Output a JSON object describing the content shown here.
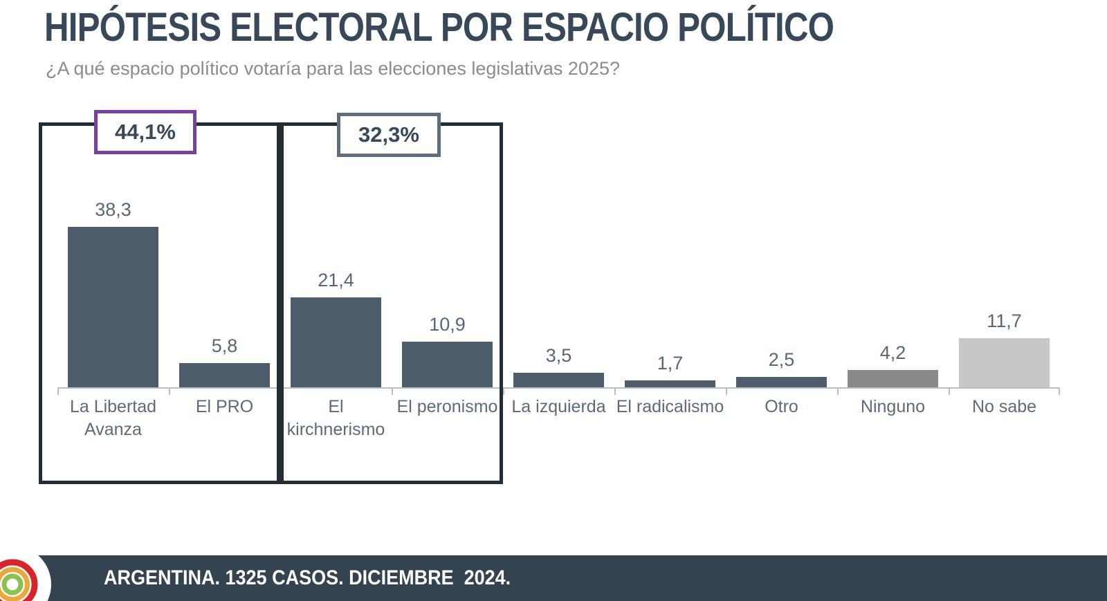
{
  "title": "HIPÓTESIS ELECTORAL POR ESPACIO POLÍTICO",
  "subtitle": "¿A qué espacio político votaría para las elecciones legislativas 2025?",
  "footer": {
    "text": "ARGENTINA. 1325 CASOS. DICIEMBRE  2024.",
    "background": "#334450",
    "logo": "rainbow-arcs-logo",
    "logo_colors": {
      "red": "#d8232a",
      "orange": "#eaa83c",
      "green": "#8cc04f",
      "base": "#ffffff"
    }
  },
  "colors": {
    "title": "#36485a",
    "subtitle": "#8b8b8b",
    "value_label": "#566779",
    "category_label": "#5b6b7a",
    "axis": "#b9bec2",
    "group_box_border": "#232d35",
    "group1_chip_border": "#7b3f9e",
    "group2_chip_border": "#5d6f7e",
    "bar_default": "#4d5c6b",
    "bar_ninguno": "#898989",
    "bar_no_sabe": "#c6c7c9"
  },
  "chart_data": {
    "type": "bar",
    "title": "HIPÓTESIS ELECTORAL POR ESPACIO POLÍTICO",
    "subtitle": "¿A qué espacio político votaría para las elecciones legislativas 2025?",
    "categories": [
      "La Libertad Avanza",
      "El PRO",
      "El kirchnerismo",
      "El peronismo",
      "La izquierda",
      "El radicalismo",
      "Otro",
      "Ninguno",
      "No sabe"
    ],
    "values": [
      38.3,
      5.8,
      21.4,
      10.9,
      3.5,
      1.7,
      2.5,
      4.2,
      11.7
    ],
    "value_labels": [
      "38,3",
      "5,8",
      "21,4",
      "10,9",
      "3,5",
      "1,7",
      "2,5",
      "4,2",
      "11,7"
    ],
    "bar_colors": [
      "#4d5c6b",
      "#4d5c6b",
      "#4d5c6b",
      "#4d5c6b",
      "#4d5c6b",
      "#4d5c6b",
      "#4d5c6b",
      "#898989",
      "#c6c7c9"
    ],
    "xlabel": "",
    "ylabel": "",
    "ylim": [
      0,
      40
    ],
    "grid": false,
    "legend": "none",
    "groups": [
      {
        "label": "44,1%",
        "categories": [
          "La Libertad Avanza",
          "El PRO"
        ],
        "border_color": "#7b3f9e"
      },
      {
        "label": "32,3%",
        "categories": [
          "El kirchnerismo",
          "El peronismo"
        ],
        "border_color": "#5d6f7e"
      }
    ]
  }
}
